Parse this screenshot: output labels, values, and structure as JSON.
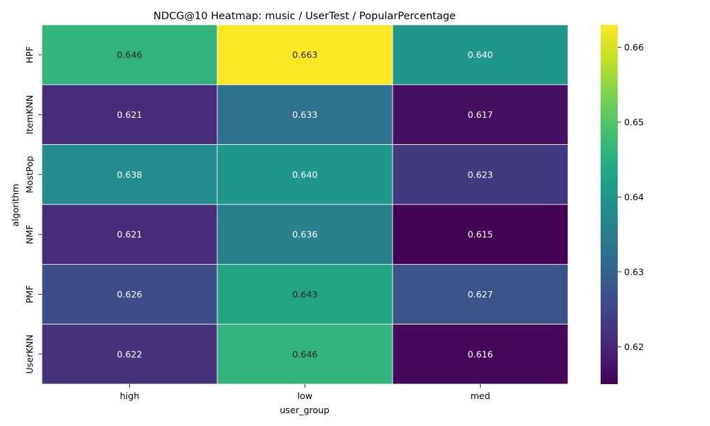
{
  "chart_data": {
    "type": "heatmap",
    "title": "NDCG@10 Heatmap: music / UserTest / PopularPercentage",
    "xlabel": "user_group",
    "ylabel": "algorithm",
    "x_categories": [
      "high",
      "low",
      "med"
    ],
    "y_categories": [
      "HPF",
      "ItemKNN",
      "MostPop",
      "NMF",
      "PMF",
      "UserKNN"
    ],
    "values": [
      [
        0.646,
        0.663,
        0.64
      ],
      [
        0.621,
        0.633,
        0.617
      ],
      [
        0.638,
        0.64,
        0.623
      ],
      [
        0.621,
        0.636,
        0.615
      ],
      [
        0.626,
        0.643,
        0.627
      ],
      [
        0.622,
        0.646,
        0.616
      ]
    ],
    "value_labels": [
      [
        "0.646",
        "0.663",
        "0.640"
      ],
      [
        "0.621",
        "0.633",
        "0.617"
      ],
      [
        "0.638",
        "0.640",
        "0.623"
      ],
      [
        "0.621",
        "0.636",
        "0.615"
      ],
      [
        "0.626",
        "0.643",
        "0.627"
      ],
      [
        "0.622",
        "0.646",
        "0.616"
      ]
    ],
    "colormap": "viridis",
    "color_range": [
      0.615,
      0.663
    ],
    "colorbar_ticks": [
      "0.62",
      "0.63",
      "0.64",
      "0.65",
      "0.66"
    ],
    "colorbar_tick_values": [
      0.62,
      0.63,
      0.64,
      0.65,
      0.66
    ],
    "grid": false,
    "legend": "colorbar-right"
  }
}
